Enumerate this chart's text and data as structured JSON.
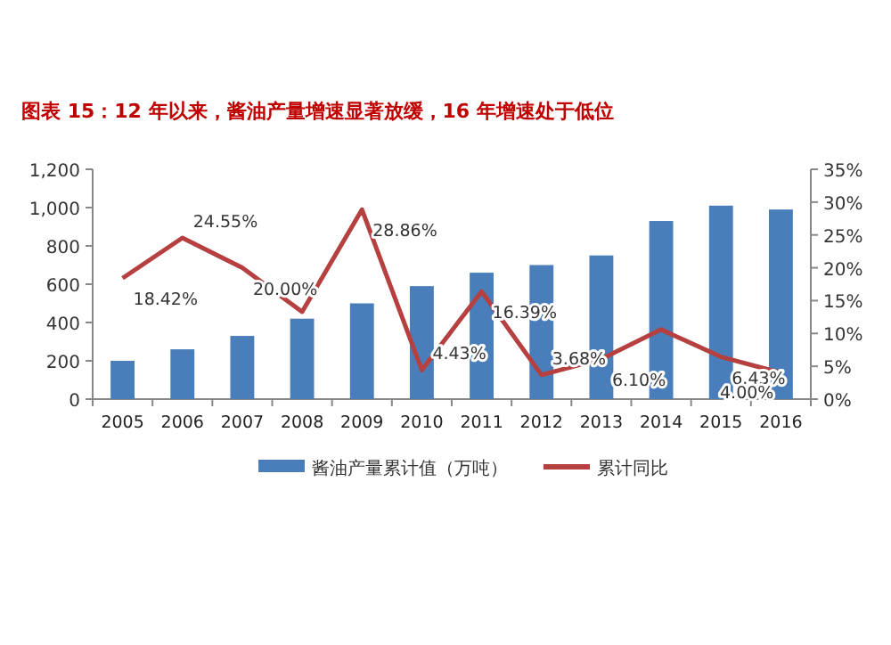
{
  "chart_data": {
    "type": "bar",
    "title": "图表 15：12 年以来，酱油产量增速显著放缓，16 年增速处于低位",
    "categories": [
      "2005",
      "2006",
      "2007",
      "2008",
      "2009",
      "2010",
      "2011",
      "2012",
      "2013",
      "2014",
      "2015",
      "2016"
    ],
    "series": [
      {
        "name": "酱油产量累计值（万吨）",
        "color": "#4a7ebb",
        "values": [
          200,
          260,
          330,
          420,
          500,
          590,
          660,
          700,
          750,
          930,
          1010,
          990
        ]
      },
      {
        "name": "累计同比",
        "type": "line",
        "axis": "y2",
        "color": "#b5403f",
        "values": [
          18.42,
          24.55,
          20.0,
          13.3,
          28.86,
          4.43,
          16.39,
          3.68,
          6.1,
          10.6,
          6.43,
          4.0
        ],
        "value_labels": [
          "18.42%",
          "24.55%",
          "20.00%",
          null,
          "28.86%",
          "4.43%",
          "16.39%",
          "3.68%",
          "6.10%",
          null,
          "6.43%",
          "4.00%"
        ]
      }
    ],
    "ylim": [
      0,
      1200
    ],
    "yticks": [
      0,
      {
        "value": 200,
        "label": "200"
      },
      400,
      600,
      800,
      {
        "value": 1000,
        "label": "1,000"
      },
      {
        "value": 1200,
        "label": "1,200"
      }
    ],
    "y2lim": [
      0,
      35
    ],
    "y2ticks": [
      {
        "value": 0,
        "label": "0%"
      },
      {
        "value": 5,
        "label": "5%"
      },
      {
        "value": 10,
        "label": "10%"
      },
      {
        "value": 15,
        "label": "15%"
      },
      {
        "value": 20,
        "label": "20%"
      },
      {
        "value": 25,
        "label": "25%"
      },
      {
        "value": 30,
        "label": "30%"
      },
      {
        "value": 35,
        "label": "35%"
      }
    ],
    "grid": false,
    "legend": "bottom"
  }
}
